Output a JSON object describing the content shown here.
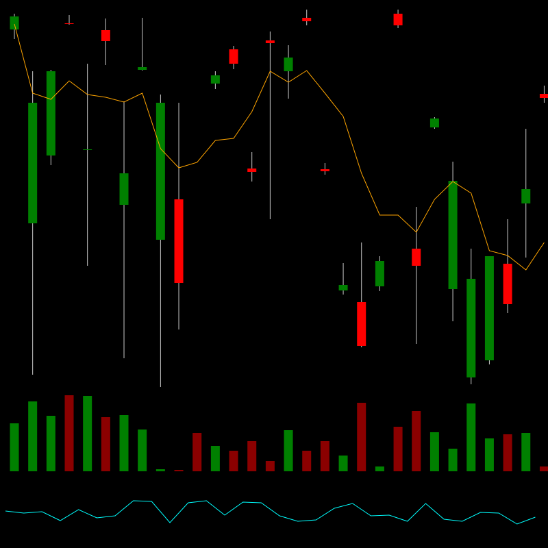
{
  "chart_data": [
    {
      "type": "candlestick",
      "open": [
        527,
        244,
        343,
        536,
        351,
        526,
        271,
        468,
        220,
        279,
        null,
        448,
        498,
        324,
        511,
        466,
        544,
        323,
        146,
        129,
        152,
        550,
        207,
        384,
        148,
        19,
        44,
        185,
        273,
        433
      ],
      "high": [
        550,
        466,
        468,
        548,
        477,
        543,
        422,
        544,
        432,
        420,
        null,
        466,
        503,
        348,
        524,
        504,
        556,
        332,
        186,
        216,
        196,
        556,
        268,
        399,
        334,
        207,
        196,
        250,
        382,
        445
      ],
      "low": [
        513,
        23,
        329,
        534,
        182,
        475,
        47,
        467,
        5,
        89,
        null,
        440,
        469,
        305,
        250,
        426,
        533,
        315,
        140,
        63,
        145,
        529,
        68,
        382,
        101,
        9,
        38,
        113,
        194,
        420
      ],
      "close": [
        546,
        420,
        466,
        535,
        352,
        510,
        317,
        472,
        420,
        157,
        null,
        460,
        477,
        319,
        507,
        486,
        539,
        320,
        154,
        65,
        189,
        533,
        182,
        397,
        306,
        163,
        196,
        126,
        294,
        427
      ],
      "up_color": "#008000",
      "down_color": "#ff0000",
      "wick_color": "#cccccc",
      "ylim": [
        0,
        560
      ]
    },
    {
      "type": "line",
      "values": [
        535,
        434,
        425,
        452,
        432,
        428,
        421,
        434,
        353,
        325,
        333,
        365,
        368,
        407,
        466,
        450,
        467,
        434,
        400,
        317,
        256,
        256,
        231,
        279,
        305,
        288,
        204,
        197,
        176,
        216
      ],
      "color": "#ffa500",
      "ylim": [
        0,
        560
      ]
    },
    {
      "type": "bar",
      "values": [
        70,
        102,
        81,
        111,
        110,
        79,
        82,
        61,
        3,
        2,
        56,
        37,
        30,
        44,
        15,
        60,
        30,
        44,
        23,
        100,
        7,
        65,
        88,
        57,
        33,
        99,
        48,
        54,
        56,
        7
      ],
      "colors": [
        "#008000",
        "#008000",
        "#008000",
        "#8b0000",
        "#008000",
        "#8b0000",
        "#008000",
        "#008000",
        "#008000",
        "#8b0000",
        "#8b0000",
        "#008000",
        "#8b0000",
        "#8b0000",
        "#8b0000",
        "#008000",
        "#8b0000",
        "#8b0000",
        "#008000",
        "#8b0000",
        "#008000",
        "#8b0000",
        "#8b0000",
        "#008000",
        "#008000",
        "#008000",
        "#008000",
        "#8b0000",
        "#008000",
        "#8b0000"
      ],
      "ylim": [
        0,
        120
      ]
    },
    {
      "type": "line",
      "values": [
        24,
        21,
        23,
        10,
        26,
        14,
        17,
        39,
        38,
        7,
        36,
        39,
        18,
        37,
        36,
        17,
        9,
        11,
        28,
        35,
        17,
        18,
        9,
        35,
        12,
        9,
        22,
        21,
        5,
        15
      ],
      "color": "#00ffff",
      "ylim": [
        0,
        60
      ]
    }
  ]
}
